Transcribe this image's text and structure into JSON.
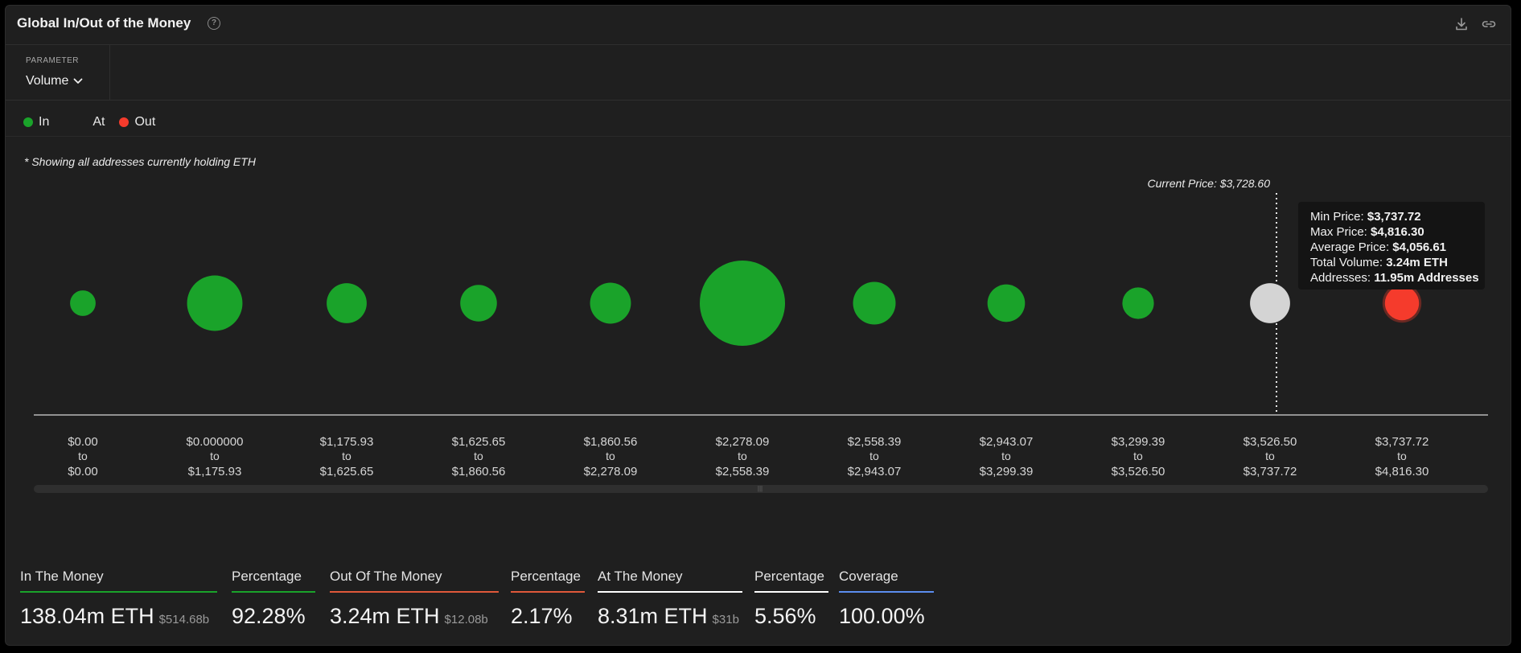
{
  "header": {
    "title": "Global In/Out of the Money",
    "help_icon": "question-circle-icon",
    "download_icon": "download-icon",
    "link_icon": "link-icon"
  },
  "parameter": {
    "label": "PARAMETER",
    "value": "Volume"
  },
  "legend": {
    "items": [
      {
        "label": "In",
        "color": "#1aa32a"
      },
      {
        "label": "At",
        "color": "#ffffff"
      },
      {
        "label": "Out",
        "color": "#f53b2c"
      }
    ]
  },
  "note": "* Showing all addresses currently holding ETH",
  "current_price_label": "Current Price: $3,728.60",
  "tooltip": {
    "lines": [
      {
        "key": "Min Price: ",
        "value": "$3,737.72"
      },
      {
        "key": "Max Price: ",
        "value": "$4,816.30"
      },
      {
        "key": "Average Price: ",
        "value": "$4,056.61"
      },
      {
        "key": "Total Volume: ",
        "value": "3.24m ETH"
      },
      {
        "key": "Addresses: ",
        "value": "11.95m Addresses"
      }
    ]
  },
  "chart_data": {
    "type": "scatter",
    "current_price": 3728.6,
    "bins": [
      {
        "from": "$0.00",
        "to": "$0.00",
        "status": "in",
        "size": 0.3
      },
      {
        "from": "$0.000000",
        "to": "$1,175.93",
        "status": "in",
        "size": 0.65
      },
      {
        "from": "$1,175.93",
        "to": "$1,625.65",
        "status": "in",
        "size": 0.47
      },
      {
        "from": "$1,625.65",
        "to": "$1,860.56",
        "status": "in",
        "size": 0.43
      },
      {
        "from": "$1,860.56",
        "to": "$2,278.09",
        "status": "in",
        "size": 0.48
      },
      {
        "from": "$2,278.09",
        "to": "$2,558.39",
        "status": "in",
        "size": 1.0
      },
      {
        "from": "$2,558.39",
        "to": "$2,943.07",
        "status": "in",
        "size": 0.5
      },
      {
        "from": "$2,943.07",
        "to": "$3,299.39",
        "status": "in",
        "size": 0.44
      },
      {
        "from": "$3,299.39",
        "to": "$3,526.50",
        "status": "in",
        "size": 0.37
      },
      {
        "from": "$3,526.50",
        "to": "$3,737.72",
        "status": "at",
        "size": 0.47
      },
      {
        "from": "$3,737.72",
        "to": "$4,816.30",
        "status": "out",
        "size": 0.4
      }
    ],
    "colors": {
      "in": "#1aa32a",
      "at": "#d4d4d4",
      "out": "#f53b2c"
    }
  },
  "stats": [
    {
      "label": "In The Money",
      "value": "138.04m ETH",
      "sub": "$514.68b",
      "color": "#1aa32a"
    },
    {
      "label": "Percentage",
      "value": "92.28%",
      "sub": "",
      "color": "#1aa32a"
    },
    {
      "label": "Out Of The Money",
      "value": "3.24m ETH",
      "sub": "$12.08b",
      "color": "#e0583a"
    },
    {
      "label": "Percentage",
      "value": "2.17%",
      "sub": "",
      "color": "#e0583a"
    },
    {
      "label": "At The Money",
      "value": "8.31m ETH",
      "sub": "$31b",
      "color": "#ffffff"
    },
    {
      "label": "Percentage",
      "value": "5.56%",
      "sub": "",
      "color": "#ffffff"
    },
    {
      "label": "Coverage",
      "value": "100.00%",
      "sub": "",
      "color": "#5b8def"
    }
  ]
}
